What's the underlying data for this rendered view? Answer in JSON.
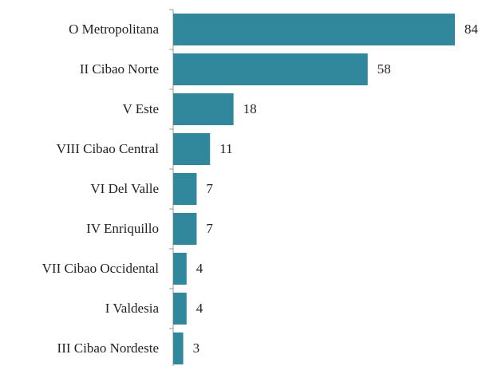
{
  "chart_data": {
    "type": "hbar",
    "categories": [
      "O Metropolitana",
      "II Cibao Norte",
      "V Este",
      "VIII Cibao Central",
      "VI Del Valle",
      "IV Enriquillo",
      "VII Cibao Occidental",
      "I Valdesia",
      "III Cibao Nordeste"
    ],
    "values": [
      84,
      58,
      18,
      11,
      7,
      7,
      4,
      4,
      3
    ],
    "color": "#31879c",
    "xlim": [
      0,
      84
    ]
  }
}
